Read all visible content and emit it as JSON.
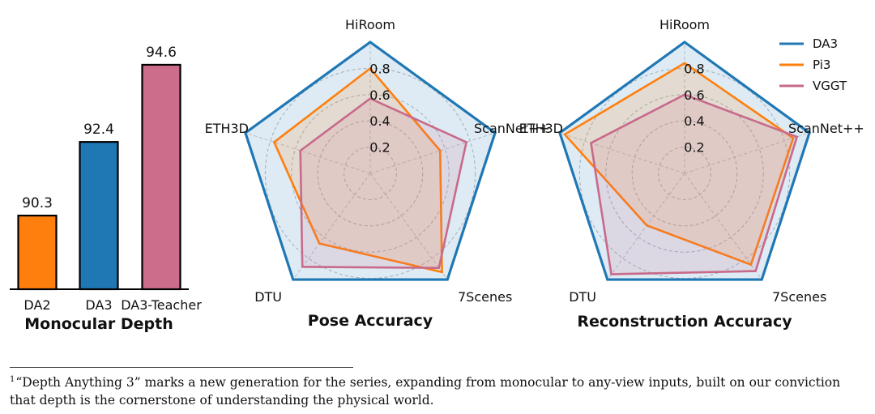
{
  "chart_data": [
    {
      "type": "bar",
      "title": "Monocular Depth",
      "categories": [
        "DA2",
        "DA3",
        "DA3-Teacher"
      ],
      "values": [
        90.3,
        92.4,
        94.6
      ],
      "value_labels": [
        "90.3",
        "92.4",
        "94.6"
      ],
      "colors": [
        "#ff7f0e",
        "#1f77b4",
        "#cc6d8b"
      ],
      "ylim": [
        88.2,
        95.8
      ],
      "grid": false
    },
    {
      "type": "radar",
      "title": "Pose Accuracy",
      "axes": [
        "HiRoom",
        "ScanNet++",
        "7Scenes",
        "DTU",
        "ETH3D"
      ],
      "rticks": [
        "0.2",
        "0.4",
        "0.6",
        "0.8"
      ],
      "rmax": 1.0,
      "series": [
        {
          "name": "DA3",
          "values": [
            1.0,
            1.0,
            1.0,
            1.0,
            1.0
          ],
          "color": "#1f77b4"
        },
        {
          "name": "Pi3",
          "values": [
            0.8,
            0.56,
            0.93,
            0.66,
            0.77
          ],
          "color": "#ff7f0e"
        },
        {
          "name": "VGGT",
          "values": [
            0.57,
            0.77,
            0.89,
            0.88,
            0.56
          ],
          "color": "#c86a8a"
        }
      ]
    },
    {
      "type": "radar",
      "title": "Reconstruction Accuracy",
      "axes": [
        "HiRoom",
        "ScanNet++",
        "7Scenes",
        "DTU",
        "ETH3D"
      ],
      "rticks": [
        "0.2",
        "0.4",
        "0.6",
        "0.8"
      ],
      "rmax": 1.0,
      "series": [
        {
          "name": "DA3",
          "values": [
            1.0,
            1.0,
            1.0,
            1.0,
            1.0
          ],
          "color": "#1f77b4"
        },
        {
          "name": "Pi3",
          "values": [
            0.84,
            0.87,
            0.86,
            0.49,
            0.96
          ],
          "color": "#ff7f0e"
        },
        {
          "name": "VGGT",
          "values": [
            0.6,
            0.9,
            0.92,
            0.95,
            0.75
          ],
          "color": "#c86a8a"
        }
      ]
    }
  ],
  "legend": {
    "placement": "top-right",
    "entries": [
      {
        "label": "DA3",
        "color": "#1f77b4"
      },
      {
        "label": "Pi3",
        "color": "#ff7f0e"
      },
      {
        "label": "VGGT",
        "color": "#c86a8a"
      }
    ]
  },
  "footnote": {
    "marker": "1",
    "text": "“Depth Anything 3” marks a new generation for the series, expanding from monocular to any-view inputs, built on our conviction that depth is the cornerstone of understanding the physical world."
  }
}
